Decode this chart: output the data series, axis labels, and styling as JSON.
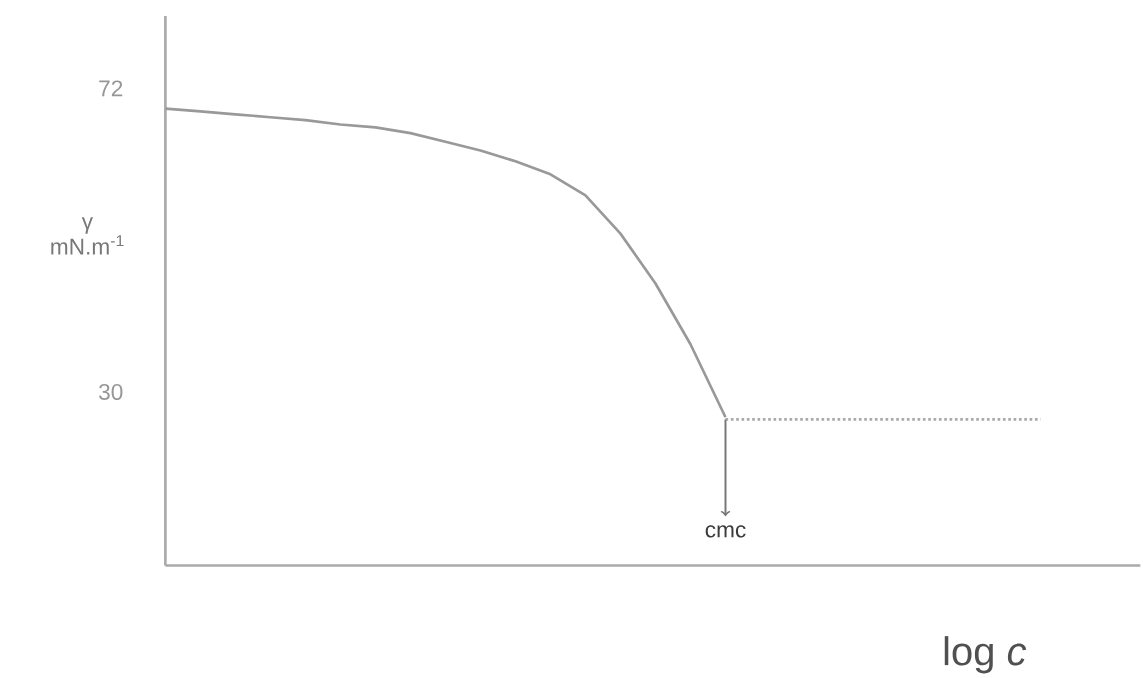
{
  "chart_data": {
    "type": "line",
    "xlabel": "log *c*",
    "ylabel": "γ mN.m$^{-1}$",
    "categories": [
      null,
      null,
      null,
      null,
      null,
      null,
      null,
      null,
      null,
      null,
      null,
      null,
      null,
      null,
      null,
      null,
      null,
      null,
      null,
      null,
      null,
      null,
      null,
      null,
      null,
      null
    ],
    "series": [
      {
        "color": "#999999",
        "line_style": "solid",
        "values": [
          69.2,
          68.8,
          68.4,
          68.0,
          67.6,
          67.0,
          66.6,
          65.8,
          64.6,
          63.4,
          61.9,
          60.1,
          57.2,
          51.9,
          45.0,
          36.6,
          26.5,
          null,
          null,
          null,
          null,
          null,
          null,
          null,
          null,
          null
        ]
      },
      {
        "color": "#aaaaaa",
        "line_style": "dotted",
        "values": [
          null,
          null,
          null,
          null,
          null,
          null,
          null,
          null,
          null,
          null,
          null,
          null,
          null,
          null,
          null,
          null,
          26.2,
          26.2,
          26.2,
          26.2,
          26.2,
          26.2,
          26.2,
          26.2,
          26.2,
          26.2
        ]
      }
    ],
    "ylim": [
      6,
      82
    ],
    "yticks": [
      72,
      30
    ],
    "tick_labels": "y",
    "grid": false,
    "marker": "none",
    "annotations": [
      "cmc"
    ]
  }
}
